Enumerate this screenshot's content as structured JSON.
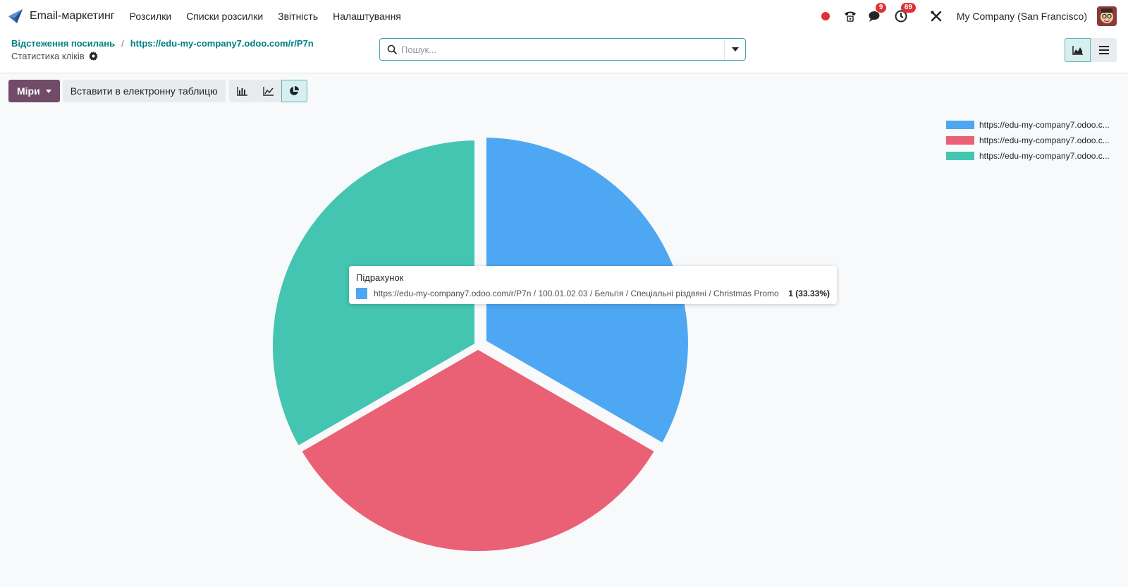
{
  "navbar": {
    "app_name": "Email-маркетинг",
    "menu": [
      "Розсилки",
      "Списки розсилки",
      "Звітність",
      "Налаштування"
    ],
    "messages_badge": "9",
    "activities_badge": "69",
    "company": "My Company (San Francisco)"
  },
  "breadcrumb": {
    "parent": "Відстеження посилань",
    "separator": "/",
    "current": "https://edu-my-company7.odoo.com/r/P7n"
  },
  "subtitle": "Статистика кліків",
  "search": {
    "placeholder": "Пошук..."
  },
  "toolbar": {
    "measures_label": "Міри",
    "spreadsheet_label": "Вставити в електронну таблицю"
  },
  "colors": {
    "primary": "#714b67",
    "link": "#017e84",
    "blue": "#4ea7f2",
    "red": "#ea6175",
    "teal": "#43c5b1"
  },
  "chart_data": {
    "type": "pie",
    "categories": [
      "https://edu-my-company7.odoo.c...",
      "https://edu-my-company7.odoo.c...",
      "https://edu-my-company7.odoo.c..."
    ],
    "values": [
      1,
      1,
      1
    ],
    "colors": [
      "#4ea7f2",
      "#ea6175",
      "#43c5b1"
    ],
    "legend_position": "top-right",
    "highlighted_index": 0
  },
  "tooltip": {
    "title": "Підрахунок",
    "label": "https://edu-my-company7.odoo.com/r/P7n / 100.01.02.03 / Бельгія / Спеціальні різдвяні / Christmas Promo",
    "value": "1 (33.33%)"
  }
}
